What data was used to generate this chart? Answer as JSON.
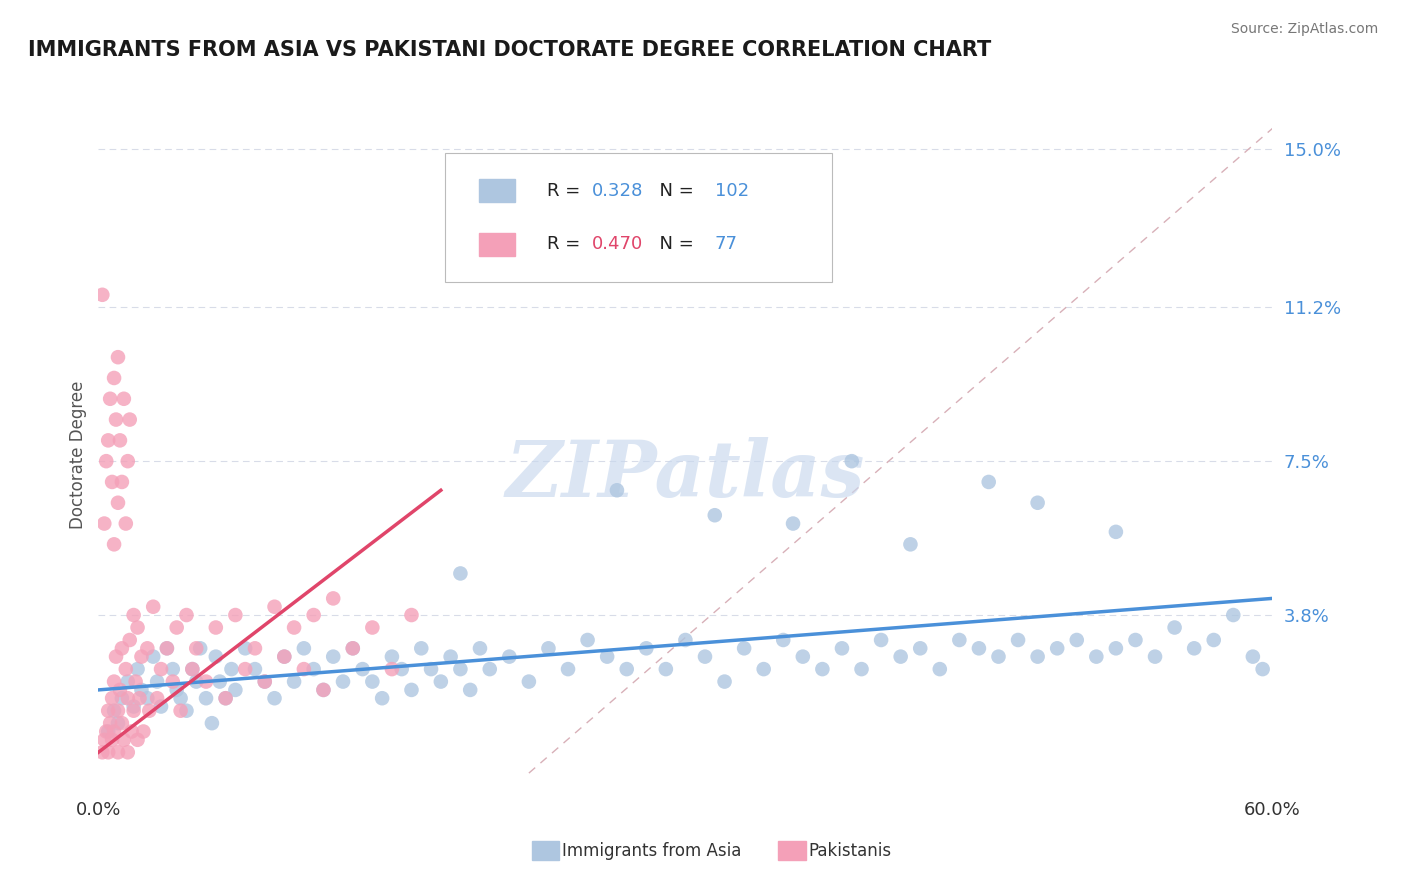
{
  "title": "IMMIGRANTS FROM ASIA VS PAKISTANI DOCTORATE DEGREE CORRELATION CHART",
  "source_text": "Source: ZipAtlas.com",
  "ylabel": "Doctorate Degree",
  "legend_label1": "Immigrants from Asia",
  "legend_label2": "Pakistanis",
  "R1": "0.328",
  "N1": "102",
  "R2": "0.470",
  "N2": "77",
  "color1": "#aec6e0",
  "color2": "#f4a0b8",
  "line_color1": "#4a90d9",
  "line_color2": "#e0456a",
  "ref_line_color": "#d8b0b8",
  "xlim": [
    0.0,
    0.6
  ],
  "ylim": [
    -0.005,
    0.158
  ],
  "yticks": [
    0.038,
    0.075,
    0.112,
    0.15
  ],
  "ytick_labels": [
    "3.8%",
    "7.5%",
    "11.2%",
    "15.0%"
  ],
  "background_color": "#ffffff",
  "grid_color": "#d8dce8",
  "watermark": "ZIPatlas",
  "watermark_color": "#c8d8ee",
  "asia_x": [
    0.005,
    0.008,
    0.01,
    0.012,
    0.015,
    0.018,
    0.02,
    0.022,
    0.025,
    0.028,
    0.03,
    0.032,
    0.035,
    0.038,
    0.04,
    0.042,
    0.045,
    0.048,
    0.05,
    0.052,
    0.055,
    0.058,
    0.06,
    0.062,
    0.065,
    0.068,
    0.07,
    0.075,
    0.08,
    0.085,
    0.09,
    0.095,
    0.1,
    0.105,
    0.11,
    0.115,
    0.12,
    0.125,
    0.13,
    0.135,
    0.14,
    0.145,
    0.15,
    0.155,
    0.16,
    0.165,
    0.17,
    0.175,
    0.18,
    0.185,
    0.19,
    0.195,
    0.2,
    0.21,
    0.22,
    0.23,
    0.24,
    0.25,
    0.26,
    0.27,
    0.28,
    0.29,
    0.3,
    0.31,
    0.32,
    0.33,
    0.34,
    0.35,
    0.36,
    0.37,
    0.38,
    0.39,
    0.4,
    0.41,
    0.42,
    0.43,
    0.44,
    0.45,
    0.46,
    0.47,
    0.48,
    0.49,
    0.5,
    0.51,
    0.52,
    0.53,
    0.54,
    0.55,
    0.56,
    0.57,
    0.58,
    0.59,
    0.595,
    0.355,
    0.48,
    0.52,
    0.455,
    0.385,
    0.415,
    0.315,
    0.265,
    0.185
  ],
  "asia_y": [
    0.01,
    0.015,
    0.012,
    0.018,
    0.022,
    0.016,
    0.025,
    0.02,
    0.018,
    0.028,
    0.022,
    0.016,
    0.03,
    0.025,
    0.02,
    0.018,
    0.015,
    0.025,
    0.022,
    0.03,
    0.018,
    0.012,
    0.028,
    0.022,
    0.018,
    0.025,
    0.02,
    0.03,
    0.025,
    0.022,
    0.018,
    0.028,
    0.022,
    0.03,
    0.025,
    0.02,
    0.028,
    0.022,
    0.03,
    0.025,
    0.022,
    0.018,
    0.028,
    0.025,
    0.02,
    0.03,
    0.025,
    0.022,
    0.028,
    0.025,
    0.02,
    0.03,
    0.025,
    0.028,
    0.022,
    0.03,
    0.025,
    0.032,
    0.028,
    0.025,
    0.03,
    0.025,
    0.032,
    0.028,
    0.022,
    0.03,
    0.025,
    0.032,
    0.028,
    0.025,
    0.03,
    0.025,
    0.032,
    0.028,
    0.03,
    0.025,
    0.032,
    0.03,
    0.028,
    0.032,
    0.028,
    0.03,
    0.032,
    0.028,
    0.03,
    0.032,
    0.028,
    0.035,
    0.03,
    0.032,
    0.038,
    0.028,
    0.025,
    0.06,
    0.065,
    0.058,
    0.07,
    0.075,
    0.055,
    0.062,
    0.068,
    0.048
  ],
  "pak_x": [
    0.002,
    0.003,
    0.004,
    0.005,
    0.005,
    0.006,
    0.007,
    0.007,
    0.008,
    0.008,
    0.009,
    0.01,
    0.01,
    0.011,
    0.012,
    0.012,
    0.013,
    0.014,
    0.015,
    0.015,
    0.016,
    0.017,
    0.018,
    0.018,
    0.019,
    0.02,
    0.02,
    0.021,
    0.022,
    0.023,
    0.025,
    0.026,
    0.028,
    0.03,
    0.032,
    0.035,
    0.038,
    0.04,
    0.042,
    0.045,
    0.048,
    0.05,
    0.055,
    0.06,
    0.065,
    0.07,
    0.075,
    0.08,
    0.085,
    0.09,
    0.095,
    0.1,
    0.105,
    0.11,
    0.115,
    0.12,
    0.13,
    0.14,
    0.15,
    0.16,
    0.003,
    0.004,
    0.005,
    0.006,
    0.007,
    0.008,
    0.008,
    0.009,
    0.01,
    0.01,
    0.011,
    0.012,
    0.013,
    0.014,
    0.015,
    0.016,
    0.002
  ],
  "pak_y": [
    0.005,
    0.008,
    0.01,
    0.015,
    0.005,
    0.012,
    0.018,
    0.008,
    0.022,
    0.01,
    0.028,
    0.015,
    0.005,
    0.02,
    0.012,
    0.03,
    0.008,
    0.025,
    0.018,
    0.005,
    0.032,
    0.01,
    0.038,
    0.015,
    0.022,
    0.008,
    0.035,
    0.018,
    0.028,
    0.01,
    0.03,
    0.015,
    0.04,
    0.018,
    0.025,
    0.03,
    0.022,
    0.035,
    0.015,
    0.038,
    0.025,
    0.03,
    0.022,
    0.035,
    0.018,
    0.038,
    0.025,
    0.03,
    0.022,
    0.04,
    0.028,
    0.035,
    0.025,
    0.038,
    0.02,
    0.042,
    0.03,
    0.035,
    0.025,
    0.038,
    0.06,
    0.075,
    0.08,
    0.09,
    0.07,
    0.095,
    0.055,
    0.085,
    0.1,
    0.065,
    0.08,
    0.07,
    0.09,
    0.06,
    0.075,
    0.085,
    0.115
  ],
  "ref_line_x": [
    0.22,
    0.6
  ],
  "ref_line_y": [
    0.0,
    0.155
  ],
  "blue_line_x": [
    0.0,
    0.6
  ],
  "blue_line_y": [
    0.02,
    0.042
  ],
  "pink_line_x": [
    0.0,
    0.175
  ],
  "pink_line_y": [
    0.005,
    0.068
  ]
}
